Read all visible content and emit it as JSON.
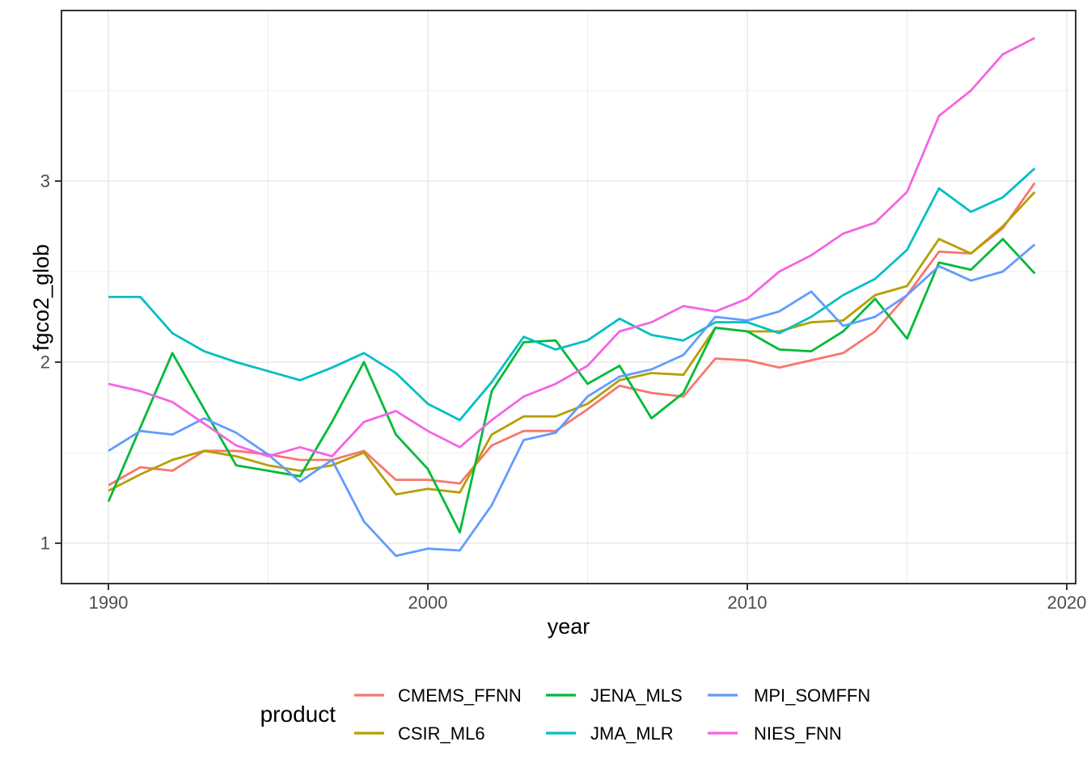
{
  "chart_data": {
    "type": "line",
    "title": "",
    "xlabel": "year",
    "ylabel": "fgco2_glob",
    "xlim": [
      1988.53,
      2020.28
    ],
    "ylim": [
      0.777,
      3.942
    ],
    "x_major_ticks": [
      1990,
      2000,
      2010,
      2020
    ],
    "x_minor_ticks": [
      1995,
      2005,
      2015
    ],
    "y_major_ticks": [
      1,
      2,
      3
    ],
    "y_minor_ticks": [
      1.5,
      2.5,
      3.5
    ],
    "grid": "major+minor",
    "legend_position": "bottom",
    "legend_title": "product",
    "x": [
      1990,
      1991,
      1992,
      1993,
      1994,
      1995,
      1996,
      1997,
      1998,
      1999,
      2000,
      2001,
      2002,
      2003,
      2004,
      2005,
      2006,
      2007,
      2008,
      2009,
      2010,
      2011,
      2012,
      2013,
      2014,
      2015,
      2016,
      2017,
      2018,
      2019
    ],
    "series": [
      {
        "name": "CMEMS_FFNN",
        "color": "#F8766D",
        "values": [
          1.32,
          1.42,
          1.4,
          1.51,
          1.51,
          1.49,
          1.46,
          1.46,
          1.51,
          1.35,
          1.35,
          1.33,
          1.54,
          1.62,
          1.62,
          1.74,
          1.87,
          1.83,
          1.81,
          2.02,
          2.01,
          1.97,
          2.01,
          2.05,
          2.17,
          2.37,
          2.61,
          2.6,
          2.74,
          2.99
        ]
      },
      {
        "name": "CSIR_ML6",
        "color": "#B79F00",
        "values": [
          1.29,
          1.38,
          1.46,
          1.51,
          1.48,
          1.43,
          1.4,
          1.43,
          1.5,
          1.27,
          1.3,
          1.28,
          1.6,
          1.7,
          1.7,
          1.77,
          1.9,
          1.94,
          1.93,
          2.19,
          2.17,
          2.17,
          2.22,
          2.23,
          2.37,
          2.42,
          2.68,
          2.6,
          2.75,
          2.94
        ]
      },
      {
        "name": "JENA_MLS",
        "color": "#00BA38",
        "values": [
          1.23,
          1.64,
          2.05,
          1.74,
          1.43,
          1.4,
          1.37,
          1.67,
          2.0,
          1.6,
          1.41,
          1.06,
          1.84,
          2.11,
          2.12,
          1.88,
          1.98,
          1.69,
          1.83,
          2.19,
          2.17,
          2.07,
          2.06,
          2.17,
          2.35,
          2.13,
          2.55,
          2.51,
          2.68,
          2.49
        ]
      },
      {
        "name": "JMA_MLR",
        "color": "#00BFC4",
        "values": [
          2.36,
          2.36,
          2.16,
          2.06,
          2.0,
          1.95,
          1.9,
          1.97,
          2.05,
          1.94,
          1.77,
          1.68,
          1.89,
          2.14,
          2.07,
          2.12,
          2.24,
          2.15,
          2.12,
          2.22,
          2.22,
          2.16,
          2.25,
          2.37,
          2.46,
          2.62,
          2.96,
          2.83,
          2.91,
          3.07
        ]
      },
      {
        "name": "MPI_SOMFFN",
        "color": "#619CFF",
        "values": [
          1.51,
          1.62,
          1.6,
          1.69,
          1.61,
          1.49,
          1.34,
          1.46,
          1.12,
          0.93,
          0.97,
          0.96,
          1.21,
          1.57,
          1.61,
          1.81,
          1.92,
          1.96,
          2.04,
          2.25,
          2.23,
          2.28,
          2.39,
          2.2,
          2.25,
          2.37,
          2.53,
          2.45,
          2.5,
          2.65
        ]
      },
      {
        "name": "NIES_FNN",
        "color": "#F564E3",
        "values": [
          1.88,
          1.84,
          1.78,
          1.66,
          1.54,
          1.48,
          1.53,
          1.48,
          1.67,
          1.73,
          1.62,
          1.53,
          1.68,
          1.81,
          1.88,
          1.98,
          2.17,
          2.22,
          2.31,
          2.28,
          2.35,
          2.5,
          2.59,
          2.71,
          2.77,
          2.94,
          3.36,
          3.5,
          3.7,
          3.79
        ]
      }
    ],
    "style": {
      "panel_background": "#FFFFFF",
      "panel_border": "#333333",
      "grid_color": "#EBEBEB",
      "tick_color": "#333333",
      "tick_label_color": "#4D4D4D",
      "line_width": 2.8
    }
  }
}
